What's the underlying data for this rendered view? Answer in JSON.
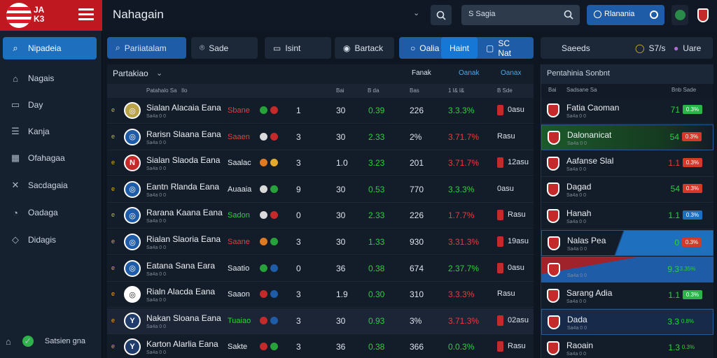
{
  "logo": {
    "text": "JA K3"
  },
  "topbar": {
    "title": "Nahagain",
    "search_placeholder": "S Sagia",
    "account": "Rlanania",
    "account_icon": "circle-outline-icon"
  },
  "sidebar": {
    "items": [
      {
        "label": "Nipadeia",
        "icon": "search-icon",
        "active": true
      },
      {
        "label": "Nagais",
        "icon": "home-icon"
      },
      {
        "label": "Day",
        "icon": "calendar-icon"
      },
      {
        "label": "Kanja",
        "icon": "list-icon"
      },
      {
        "label": "Ofahagaa",
        "icon": "grid-icon"
      },
      {
        "label": "Sacdagaia",
        "icon": "chart-icon"
      },
      {
        "label": "Oadaga",
        "icon": "gauge-icon"
      },
      {
        "label": "Didagis",
        "icon": "diamond-icon"
      }
    ],
    "status": "Satsien gna"
  },
  "filters": {
    "left": [
      {
        "label": "Pariiatalam",
        "icon": "search-icon",
        "active": true
      },
      {
        "label": "Sade",
        "icon": "pin-icon"
      },
      {
        "label": "Isint",
        "icon": "calendar-icon"
      },
      {
        "label": "Bartack",
        "icon": "target-icon"
      }
    ],
    "segmented": [
      {
        "label": "Oalia",
        "icon": "circle-icon"
      },
      {
        "label": "Haint",
        "active": true
      },
      {
        "label": "SC Nat",
        "icon": "square-icon"
      }
    ],
    "right": [
      {
        "label": "Saeeds"
      },
      {
        "label": "S7/s",
        "icon": "yellow-dot-icon"
      },
      {
        "label": "Uare",
        "icon": "purple-dot-icon"
      }
    ]
  },
  "table": {
    "title": "Partakiao",
    "sort": "Fanak",
    "filter1": "Oanak",
    "filter2": "Oanax",
    "headers": [
      "Patahalo Sa",
      "Ilo",
      "Bai",
      "B da",
      "Bas",
      "1 l& l&",
      "B Sde"
    ],
    "rows": [
      {
        "rank": "e",
        "badge": "◎",
        "name": "Sialan Alacaia Eana",
        "sub": "Sa4a 0 0",
        "form": "Sbane",
        "fcolor": "#ee3b3b",
        "c1": "#27a13a",
        "c2": "#c42a2a",
        "n1": "1",
        "n2": "30",
        "n3": "0.39",
        "n4": "226",
        "n5": "3.3.3%",
        "n5c": "green",
        "n6": "0asu",
        "flag": true,
        "badgeBg": "#b8a24a"
      },
      {
        "rank": "e",
        "badge": "◎",
        "name": "Rarisn Slaana Eana",
        "sub": "Sa4a 0 0",
        "form": "Saaen",
        "fcolor": "#ee3b3b",
        "c1": "#dadada",
        "c2": "#c42a2a",
        "n1": "3",
        "n2": "30",
        "n3": "2.33",
        "n4": "2%",
        "n5": "3.71.7%",
        "n5c": "red",
        "n6": "Rasu",
        "flag": false,
        "badgeBg": "#1f5ca8"
      },
      {
        "rank": "e",
        "badge": "N",
        "name": "Sialan Slaoda Eana",
        "sub": "Sa4a 0 0",
        "form": "Saalac",
        "fcolor": "#e6ecf2",
        "c1": "#e07a20",
        "c2": "#e2a92a",
        "n1": "3",
        "n2": "1.0",
        "n3": "3.23",
        "n4": "201",
        "n5": "3.71.7%",
        "n5c": "red",
        "n6": "12asu",
        "flag": true,
        "badgeBg": "#c42a2a"
      },
      {
        "rank": "e",
        "badge": "◎",
        "name": "Eantn Rlanda Eana",
        "sub": "Sa4a 0 0",
        "form": "Auaaia",
        "fcolor": "#e6ecf2",
        "c1": "#dadada",
        "c2": "#27a13a",
        "n1": "9",
        "n2": "30",
        "n3": "0.53",
        "n4": "770",
        "n5": "3.3.3%",
        "n5c": "green",
        "n6": "0asu",
        "flag": false,
        "badgeBg": "#1f5ca8"
      },
      {
        "rank": "e",
        "badge": "◎",
        "name": "Rarana Kaana Eana",
        "sub": "Sa4a 0 0",
        "form": "Sadon",
        "fcolor": "#27d43b",
        "c1": "#dadada",
        "c2": "#c42a2a",
        "n1": "0",
        "n2": "30",
        "n3": "2.33",
        "n4": "226",
        "n5": "1.7.7%",
        "n5c": "red",
        "n6": "Rasu",
        "flag": true,
        "badgeBg": "#1f5ca8"
      },
      {
        "rank": "e",
        "badge": "◎",
        "name": "Rialan Slaoria Eana",
        "sub": "Sa4a 0 0",
        "form": "Saane",
        "fcolor": "#ee3b3b",
        "c1": "#e07a20",
        "c2": "#27a13a",
        "n1": "3",
        "n2": "30",
        "n3": "1.33",
        "n4": "930",
        "n5": "3.31.3%",
        "n5c": "red",
        "n6": "19asu",
        "flag": true,
        "badgeBg": "#1f5ca8"
      },
      {
        "rank": "e",
        "badge": "◎",
        "name": "Eatana Sana Eara",
        "sub": "Sa4a 0 0",
        "form": "Saatio",
        "fcolor": "#e6ecf2",
        "c1": "#27a13a",
        "c2": "#1f5ca8",
        "n1": "0",
        "n2": "36",
        "n3": "0.38",
        "n4": "674",
        "n5": "2.37.7%",
        "n5c": "green",
        "n6": "0asu",
        "flag": true,
        "badgeBg": "#1f5ca8"
      },
      {
        "rank": "e",
        "badge": "◎",
        "name": "Rialn Alacda Eana",
        "sub": "Sa4a 0 0",
        "form": "Saaon",
        "fcolor": "#e6ecf2",
        "c1": "#c42a2a",
        "c2": "#1f5ca8",
        "n1": "3",
        "n2": "1.9",
        "n3": "0.30",
        "n4": "310",
        "n5": "3.3.3%",
        "n5c": "red",
        "n6": "Rasu",
        "flag": false,
        "badgeBg": "#fff"
      },
      {
        "rank": "e",
        "badge": "Y",
        "name": "Nakan Sloana Eana",
        "sub": "Sa4a 0 0",
        "form": "Tuaiao",
        "fcolor": "#27d43b",
        "c1": "#c42a2a",
        "c2": "#1f5ca8",
        "n1": "3",
        "n2": "30",
        "n3": "0.93",
        "n4": "3%",
        "n5": "3.71.3%",
        "n5c": "red",
        "n6": "02asu",
        "flag": true,
        "badgeBg": "#1f3c6b"
      },
      {
        "rank": "e",
        "badge": "Y",
        "name": "Karton Alarlia Eana",
        "sub": "Sa4a 0 0",
        "form": "Sakte",
        "fcolor": "#e6ecf2",
        "c1": "#c42a2a",
        "c2": "#27a13a",
        "n1": "3",
        "n2": "36",
        "n3": "0.38",
        "n4": "366",
        "n5": "0.0.3%",
        "n5c": "green",
        "n6": "Rasu",
        "flag": true,
        "badgeBg": "#1f3c6b"
      }
    ]
  },
  "panel": {
    "title": "Pentahinia Sonbnt",
    "headers": [
      "Bai",
      "Sadsane Sa",
      "Bnb Sade"
    ],
    "rows": [
      {
        "name": "Fatia Caoman",
        "sub": "Sa4a 0 0",
        "value": "71",
        "pct": "0.3%",
        "vcolor": "green",
        "pbg": "#2fb24a",
        "hl": "none"
      },
      {
        "name": "Dalonanicat",
        "sub": "Sa4a 0 0",
        "value": "54",
        "pct": "0.3%",
        "vcolor": "green",
        "pbg": "#d33a2a",
        "hl": "green"
      },
      {
        "name": "Aafanse Slal",
        "sub": "Sa4a 0 0",
        "value": "1.1",
        "pct": "0.3%",
        "vcolor": "red",
        "pbg": "#d33a2a",
        "hl": "none"
      },
      {
        "name": "Dagad",
        "sub": "Sa4a 0 0",
        "value": "54",
        "pct": "0.3%",
        "vcolor": "green",
        "pbg": "#d33a2a",
        "hl": "none"
      },
      {
        "name": "Hanah",
        "sub": "Sa4a 0 0",
        "value": "1.1",
        "pct": "0.3%",
        "vcolor": "green",
        "pbg": "#1f6fbf",
        "hl": "none"
      },
      {
        "name": "Nalas Pea",
        "sub": "Sa4a 0 0",
        "value": "0",
        "pct": "0.3%",
        "vcolor": "green",
        "pbg": "#d33a2a",
        "hl": "blue"
      },
      {
        "name": "",
        "sub": "Sa4a 0 0",
        "value": "9.3",
        "pct": "3.35%",
        "vcolor": "green",
        "pbg": "none",
        "hl": "red"
      },
      {
        "name": "Sarang Adia",
        "sub": "Sa4a 0 0",
        "value": "1.1",
        "pct": "0.3%",
        "vcolor": "green",
        "pbg": "#2fb24a",
        "hl": "none"
      },
      {
        "name": "Dada",
        "sub": "Sa4a 0 0",
        "value": "3.3",
        "pct": "0.8%",
        "vcolor": "green",
        "pbg": "none",
        "hl": "blue2"
      },
      {
        "name": "Raoain",
        "sub": "Sa4a 0 0",
        "value": "1.3",
        "pct": "0.3%",
        "vcolor": "green",
        "pbg": "none",
        "hl": "none"
      }
    ]
  }
}
